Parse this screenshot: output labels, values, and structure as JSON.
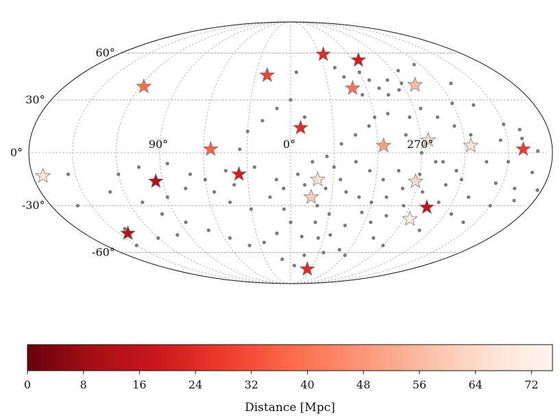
{
  "chart_data": {
    "type": "scatter",
    "projection": "mollweide",
    "title": "",
    "lat_tick_labels": [
      "60°",
      "30°",
      "0°",
      "-30°",
      "-60°"
    ],
    "lon_tick_labels": [
      "90°",
      "0°",
      "270°"
    ],
    "grid": true,
    "colorbar": {
      "label": "Distance [Mpc]",
      "colormap": "Reds_r",
      "range": [
        0,
        75
      ],
      "ticks": [
        0,
        8,
        16,
        24,
        32,
        40,
        48,
        56,
        64,
        72
      ],
      "tick_labels": [
        "0",
        "8",
        "16",
        "24",
        "32",
        "40",
        "48",
        "56",
        "64",
        "72"
      ]
    },
    "series": [
      {
        "marker": "star",
        "points": [
          {
            "lon": 117,
            "lat": 38,
            "distance": 38
          },
          {
            "lon": 20,
            "lat": 45,
            "distance": 30
          },
          {
            "lon": -34,
            "lat": 59,
            "distance": 24
          },
          {
            "lon": -66,
            "lat": 55,
            "distance": 20
          },
          {
            "lon": -7,
            "lat": 14,
            "distance": 24
          },
          {
            "lon": -49,
            "lat": 37,
            "distance": 40
          },
          {
            "lon": -100,
            "lat": 39,
            "distance": 56
          },
          {
            "lon": -64,
            "lat": 4,
            "distance": 50
          },
          {
            "lon": -95,
            "lat": 7,
            "distance": 66
          },
          {
            "lon": -124,
            "lat": 4,
            "distance": 68
          },
          {
            "lon": -160,
            "lat": 2,
            "distance": 28
          },
          {
            "lon": 55,
            "lat": 2,
            "distance": 36
          },
          {
            "lon": 173,
            "lat": -13,
            "distance": 68
          },
          {
            "lon": 95,
            "lat": -16,
            "distance": 12
          },
          {
            "lon": 36,
            "lat": -12,
            "distance": 20
          },
          {
            "lon": -19,
            "lat": -15,
            "distance": 68
          },
          {
            "lon": -15,
            "lat": -25,
            "distance": 60
          },
          {
            "lon": -88,
            "lat": -16,
            "distance": 64
          },
          {
            "lon": -103,
            "lat": -31,
            "distance": 16
          },
          {
            "lon": -95,
            "lat": -38,
            "distance": 72
          },
          {
            "lon": 142,
            "lat": -47,
            "distance": 14
          },
          {
            "lon": -25,
            "lat": -73,
            "distance": 24
          }
        ]
      },
      {
        "marker": "dot",
        "color": "#7a7a7a",
        "points": [
          {
            "lon": -5,
            "lat": 47
          },
          {
            "lon": -40,
            "lat": 50
          },
          {
            "lon": -60,
            "lat": 47
          },
          {
            "lon": -45,
            "lat": 44
          },
          {
            "lon": -65,
            "lat": 42
          },
          {
            "lon": -80,
            "lat": 42
          },
          {
            "lon": -90,
            "lat": 40
          },
          {
            "lon": -70,
            "lat": 37
          },
          {
            "lon": -75,
            "lat": 33
          },
          {
            "lon": -85,
            "lat": 36
          },
          {
            "lon": -55,
            "lat": 33
          },
          {
            "lon": -95,
            "lat": 48
          },
          {
            "lon": -115,
            "lat": 52
          },
          {
            "lon": -130,
            "lat": 40
          },
          {
            "lon": -135,
            "lat": 27
          },
          {
            "lon": -120,
            "lat": 28
          },
          {
            "lon": -150,
            "lat": 16
          },
          {
            "lon": -160,
            "lat": 13
          },
          {
            "lon": -145,
            "lat": 7
          },
          {
            "lon": -170,
            "lat": 1
          },
          {
            "lon": -168,
            "lat": -11
          },
          {
            "lon": -177,
            "lat": -21
          },
          {
            "lon": -165,
            "lat": -27
          },
          {
            "lon": -150,
            "lat": -30
          },
          {
            "lon": -130,
            "lat": -25
          },
          {
            "lon": -145,
            "lat": -17
          },
          {
            "lon": -115,
            "lat": -10
          },
          {
            "lon": -105,
            "lat": -5
          },
          {
            "lon": -110,
            "lat": -18
          },
          {
            "lon": -95,
            "lat": -22
          },
          {
            "lon": -85,
            "lat": -30
          },
          {
            "lon": -75,
            "lat": -36
          },
          {
            "lon": -65,
            "lat": -40
          },
          {
            "lon": -55,
            "lat": -34
          },
          {
            "lon": -45,
            "lat": -42
          },
          {
            "lon": -35,
            "lat": -48
          },
          {
            "lon": -25,
            "lat": -50
          },
          {
            "lon": -10,
            "lat": -49
          },
          {
            "lon": 0,
            "lat": -40
          },
          {
            "lon": 12,
            "lat": -47
          },
          {
            "lon": 25,
            "lat": -53
          },
          {
            "lon": 40,
            "lat": -55
          },
          {
            "lon": 55,
            "lat": -50
          },
          {
            "lon": 70,
            "lat": -45
          },
          {
            "lon": 85,
            "lat": -40
          },
          {
            "lon": 100,
            "lat": -35
          },
          {
            "lon": 110,
            "lat": -28
          },
          {
            "lon": 130,
            "lat": -22
          },
          {
            "lon": 120,
            "lat": -12
          },
          {
            "lon": 105,
            "lat": -8
          },
          {
            "lon": 85,
            "lat": -6
          },
          {
            "lon": 70,
            "lat": -12
          },
          {
            "lon": 55,
            "lat": -22
          },
          {
            "lon": 45,
            "lat": -28
          },
          {
            "lon": 30,
            "lat": -32
          },
          {
            "lon": 15,
            "lat": -25
          },
          {
            "lon": 5,
            "lat": -20
          },
          {
            "lon": -5,
            "lat": -12
          },
          {
            "lon": -15,
            "lat": -5
          },
          {
            "lon": -25,
            "lat": -2
          },
          {
            "lon": -35,
            "lat": 5
          },
          {
            "lon": -45,
            "lat": 10
          },
          {
            "lon": -55,
            "lat": 15
          },
          {
            "lon": -60,
            "lat": 20
          },
          {
            "lon": -70,
            "lat": 22
          },
          {
            "lon": -80,
            "lat": 10
          },
          {
            "lon": -90,
            "lat": 0
          },
          {
            "lon": -100,
            "lat": -5
          },
          {
            "lon": -75,
            "lat": -10
          },
          {
            "lon": -65,
            "lat": -15
          },
          {
            "lon": -55,
            "lat": -10
          },
          {
            "lon": -45,
            "lat": -5
          },
          {
            "lon": -35,
            "lat": -15
          },
          {
            "lon": -25,
            "lat": -20
          },
          {
            "lon": -20,
            "lat": -30
          },
          {
            "lon": -30,
            "lat": -35
          },
          {
            "lon": -50,
            "lat": -25
          },
          {
            "lon": -60,
            "lat": -28
          },
          {
            "lon": -70,
            "lat": -25
          },
          {
            "lon": -80,
            "lat": -20
          },
          {
            "lon": -90,
            "lat": -12
          },
          {
            "lon": -110,
            "lat": -45
          },
          {
            "lon": -125,
            "lat": -35
          },
          {
            "lon": -140,
            "lat": -40
          },
          {
            "lon": -120,
            "lat": -15
          },
          {
            "lon": -135,
            "lat": -5
          },
          {
            "lon": -125,
            "lat": 10
          },
          {
            "lon": -115,
            "lat": 15
          },
          {
            "lon": -105,
            "lat": 20
          },
          {
            "lon": -95,
            "lat": 25
          },
          {
            "lon": -85,
            "lat": 20
          },
          {
            "lon": -10,
            "lat": 20
          },
          {
            "lon": 0,
            "lat": 30
          },
          {
            "lon": 10,
            "lat": 25
          },
          {
            "lon": 20,
            "lat": 18
          },
          {
            "lon": 30,
            "lat": 12
          },
          {
            "lon": 35,
            "lat": 2
          },
          {
            "lon": 25,
            "lat": -8
          },
          {
            "lon": 45,
            "lat": -10
          },
          {
            "lon": 60,
            "lat": -15
          },
          {
            "lon": 75,
            "lat": -20
          },
          {
            "lon": 90,
            "lat": -25
          },
          {
            "lon": 100,
            "lat": -48
          },
          {
            "lon": 120,
            "lat": -50
          },
          {
            "lon": 150,
            "lat": -55
          },
          {
            "lon": 140,
            "lat": -44
          },
          {
            "lon": 160,
            "lat": -30
          },
          {
            "lon": 155,
            "lat": -12
          },
          {
            "lon": 10,
            "lat": -65
          },
          {
            "lon": -5,
            "lat": -70
          },
          {
            "lon": -15,
            "lat": -62
          },
          {
            "lon": -35,
            "lat": -60
          },
          {
            "lon": -50,
            "lat": -58
          },
          {
            "lon": -20,
            "lat": -40
          },
          {
            "lon": 5,
            "lat": -32
          },
          {
            "lon": -40,
            "lat": -22
          },
          {
            "lon": -30,
            "lat": -8
          },
          {
            "lon": -10,
            "lat": -18
          },
          {
            "lon": 10,
            "lat": -15
          },
          {
            "lon": 40,
            "lat": -18
          },
          {
            "lon": -90,
            "lat": -55
          },
          {
            "lon": -75,
            "lat": -50
          },
          {
            "lon": -60,
            "lat": -62
          },
          {
            "lon": -150,
            "lat": -5
          },
          {
            "lon": -160,
            "lat": -20
          },
          {
            "lon": -110,
            "lat": -28
          },
          {
            "lon": -160,
            "lat": 8
          }
        ]
      }
    ]
  }
}
